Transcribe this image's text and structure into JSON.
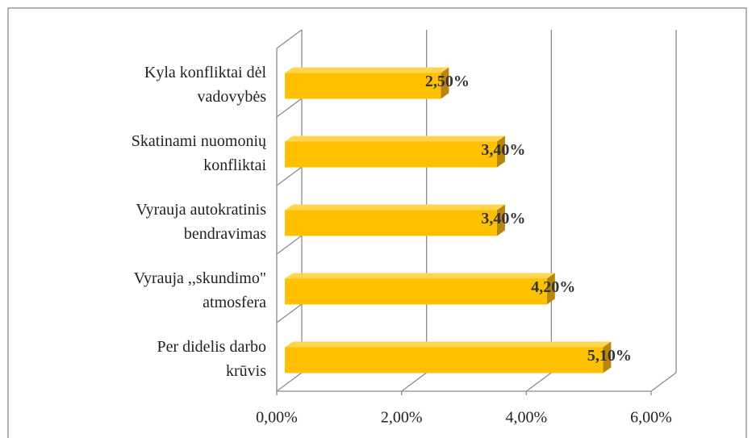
{
  "chart_data": {
    "type": "bar3d_horizontal",
    "categories": [
      [
        "Kyla konfliktai dėl",
        "vadovybės"
      ],
      [
        "Skatinami nuomonių",
        "konfliktai"
      ],
      [
        "Vyrauja autokratinis",
        "bendravimas"
      ],
      [
        "Vyrauja ,,skundimo\"",
        "atmosfera"
      ],
      [
        "Per didelis darbo",
        "krūvis"
      ]
    ],
    "values": [
      2.5,
      3.4,
      3.4,
      4.2,
      5.1
    ],
    "value_labels": [
      "2,50%",
      "3,40%",
      "3,40%",
      "4,20%",
      "5,10%"
    ],
    "color": "#ffc000",
    "xlim": [
      0,
      6
    ],
    "xticks": [
      {
        "value": 0,
        "label": "0,00%"
      },
      {
        "value": 2,
        "label": "2,00%"
      },
      {
        "value": 4,
        "label": "4,00%"
      },
      {
        "value": 6,
        "label": "6,00%"
      }
    ],
    "grid": true
  }
}
